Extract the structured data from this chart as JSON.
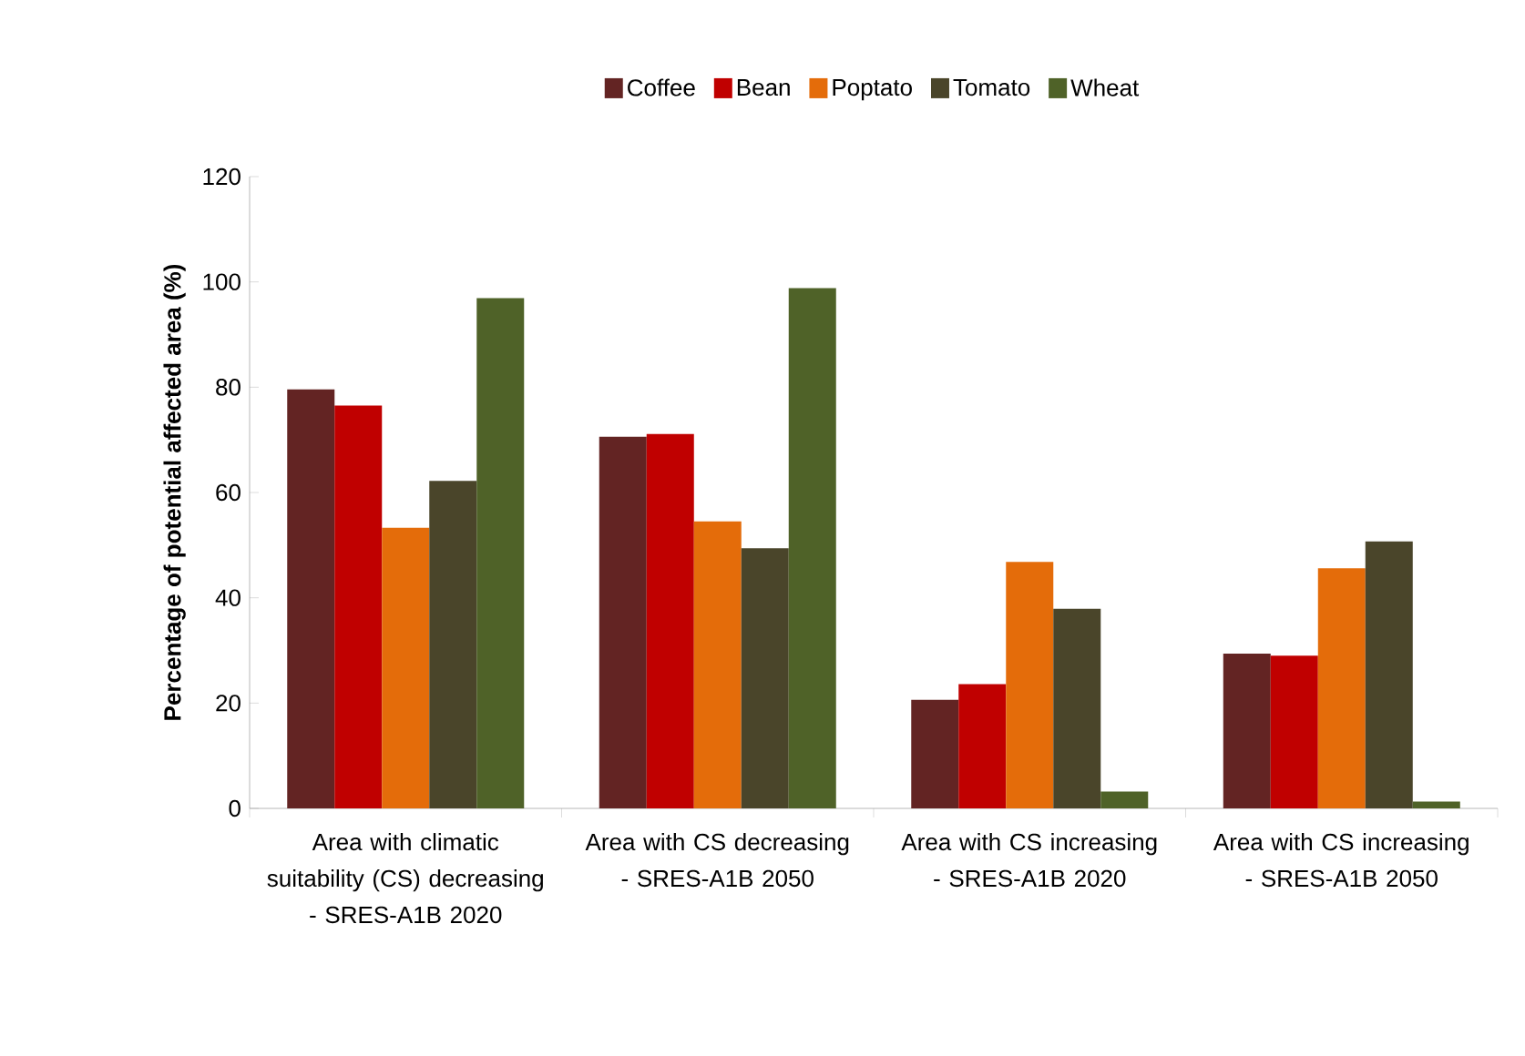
{
  "chart_data": {
    "type": "bar",
    "ylabel": "Percentage of potential affected area (%)",
    "categories": [
      "Area with climatic suitability (CS) decreasing - SRES-A1B 2020",
      "Area with CS decreasing - SRES-A1B 2050",
      "Area with CS increasing - SRES-A1B 2020",
      "Area with CS increasing -  SRES-A1B 2050"
    ],
    "series": [
      {
        "name": "Coffee",
        "color": "#632423",
        "values": [
          79.6,
          70.6,
          20.6,
          29.4
        ]
      },
      {
        "name": "Bean",
        "color": "#c00000",
        "values": [
          76.5,
          71.1,
          23.6,
          29.0
        ]
      },
      {
        "name": "Poptato",
        "color": "#e46c0a",
        "values": [
          53.3,
          54.5,
          46.8,
          45.6
        ]
      },
      {
        "name": "Tomato",
        "color": "#4a452a",
        "values": [
          62.2,
          49.4,
          37.9,
          50.7
        ]
      },
      {
        "name": "Wheat",
        "color": "#4f6228",
        "values": [
          96.9,
          98.8,
          3.2,
          1.3
        ]
      }
    ],
    "ylim": [
      0,
      120
    ],
    "yticks": [
      0,
      20,
      40,
      60,
      80,
      100,
      120
    ],
    "legend": "top"
  }
}
